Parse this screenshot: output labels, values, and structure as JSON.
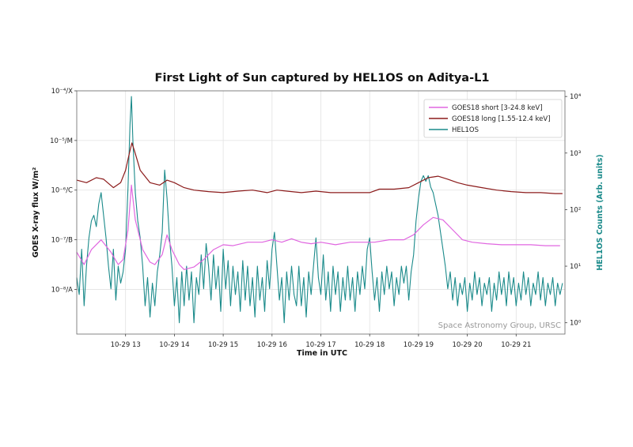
{
  "chart_data": {
    "type": "line",
    "title": "First Light of Sun captured by HEL1OS on Aditya-L1",
    "xlabel": "Time in UTC",
    "ylabel_left": "GOES X-ray flux W/m²",
    "ylabel_right": "HEL1OS Counts (Arb. units)",
    "watermark": "Space Astronomy Group, URSC",
    "x_tick_labels": [
      "10-29 13",
      "10-29 14",
      "10-29 15",
      "10-29 16",
      "10-29 17",
      "10-29 18",
      "10-29 19",
      "10-29 20",
      "10-29 21"
    ],
    "x_ticks_hours": [
      13,
      14,
      15,
      16,
      17,
      18,
      19,
      20,
      21
    ],
    "xlim_hours": [
      12.0,
      22.0
    ],
    "left_axis": {
      "scale": "log",
      "ylim_exp": [
        -8.9,
        -4.0
      ],
      "ticks": [
        {
          "exp": -4,
          "label": "10⁻⁴/X"
        },
        {
          "exp": -5,
          "label": "10⁻⁵/M"
        },
        {
          "exp": -6,
          "label": "10⁻⁶/C"
        },
        {
          "exp": -7,
          "label": "10⁻⁷/B"
        },
        {
          "exp": -8,
          "label": "10⁻⁸/A"
        }
      ]
    },
    "right_axis": {
      "scale": "log",
      "ylim_exp": [
        -0.2,
        4.1
      ],
      "ticks": [
        {
          "exp": 0,
          "label": "10⁰"
        },
        {
          "exp": 1,
          "label": "10¹"
        },
        {
          "exp": 2,
          "label": "10²"
        },
        {
          "exp": 3,
          "label": "10³"
        },
        {
          "exp": 4,
          "label": "10⁴"
        }
      ]
    },
    "grid": true,
    "legend_position": "top-right",
    "series": [
      {
        "name": "GOES18 short [3-24.8 keV]",
        "color": "#e066e0",
        "axis": "left",
        "points_exp": [
          [
            12.0,
            -7.25
          ],
          [
            12.15,
            -7.5
          ],
          [
            12.3,
            -7.2
          ],
          [
            12.5,
            -7.0
          ],
          [
            12.7,
            -7.25
          ],
          [
            12.85,
            -7.5
          ],
          [
            12.95,
            -7.4
          ],
          [
            13.05,
            -6.8
          ],
          [
            13.12,
            -5.9
          ],
          [
            13.2,
            -6.6
          ],
          [
            13.35,
            -7.2
          ],
          [
            13.5,
            -7.45
          ],
          [
            13.6,
            -7.5
          ],
          [
            13.75,
            -7.3
          ],
          [
            13.85,
            -6.9
          ],
          [
            13.95,
            -7.2
          ],
          [
            14.1,
            -7.5
          ],
          [
            14.2,
            -7.6
          ],
          [
            14.4,
            -7.55
          ],
          [
            14.6,
            -7.4
          ],
          [
            14.8,
            -7.2
          ],
          [
            15.0,
            -7.1
          ],
          [
            15.2,
            -7.12
          ],
          [
            15.5,
            -7.05
          ],
          [
            15.8,
            -7.05
          ],
          [
            16.0,
            -7.0
          ],
          [
            16.2,
            -7.05
          ],
          [
            16.4,
            -6.98
          ],
          [
            16.6,
            -7.05
          ],
          [
            16.8,
            -7.08
          ],
          [
            17.0,
            -7.05
          ],
          [
            17.3,
            -7.1
          ],
          [
            17.6,
            -7.05
          ],
          [
            17.9,
            -7.05
          ],
          [
            18.1,
            -7.05
          ],
          [
            18.4,
            -7.0
          ],
          [
            18.7,
            -7.0
          ],
          [
            18.9,
            -6.9
          ],
          [
            19.1,
            -6.7
          ],
          [
            19.3,
            -6.55
          ],
          [
            19.5,
            -6.6
          ],
          [
            19.7,
            -6.8
          ],
          [
            19.9,
            -7.0
          ],
          [
            20.1,
            -7.05
          ],
          [
            20.4,
            -7.08
          ],
          [
            20.7,
            -7.1
          ],
          [
            21.0,
            -7.1
          ],
          [
            21.3,
            -7.1
          ],
          [
            21.6,
            -7.12
          ],
          [
            21.9,
            -7.12
          ]
        ]
      },
      {
        "name": "GOES18 long [1.55-12.4 keV]",
        "color": "#8b1a1a",
        "axis": "left",
        "points_exp": [
          [
            12.0,
            -5.8
          ],
          [
            12.2,
            -5.85
          ],
          [
            12.4,
            -5.75
          ],
          [
            12.55,
            -5.78
          ],
          [
            12.75,
            -5.95
          ],
          [
            12.9,
            -5.85
          ],
          [
            13.0,
            -5.6
          ],
          [
            13.08,
            -5.25
          ],
          [
            13.13,
            -5.05
          ],
          [
            13.18,
            -5.2
          ],
          [
            13.3,
            -5.6
          ],
          [
            13.5,
            -5.85
          ],
          [
            13.7,
            -5.9
          ],
          [
            13.85,
            -5.8
          ],
          [
            14.0,
            -5.85
          ],
          [
            14.2,
            -5.95
          ],
          [
            14.4,
            -6.0
          ],
          [
            14.7,
            -6.03
          ],
          [
            15.0,
            -6.05
          ],
          [
            15.3,
            -6.02
          ],
          [
            15.6,
            -6.0
          ],
          [
            15.9,
            -6.05
          ],
          [
            16.1,
            -6.0
          ],
          [
            16.3,
            -6.02
          ],
          [
            16.6,
            -6.05
          ],
          [
            16.9,
            -6.02
          ],
          [
            17.2,
            -6.05
          ],
          [
            17.5,
            -6.05
          ],
          [
            17.8,
            -6.05
          ],
          [
            18.0,
            -6.05
          ],
          [
            18.2,
            -5.98
          ],
          [
            18.5,
            -5.98
          ],
          [
            18.8,
            -5.95
          ],
          [
            19.0,
            -5.85
          ],
          [
            19.2,
            -5.75
          ],
          [
            19.4,
            -5.72
          ],
          [
            19.6,
            -5.78
          ],
          [
            19.8,
            -5.85
          ],
          [
            20.0,
            -5.9
          ],
          [
            20.3,
            -5.95
          ],
          [
            20.6,
            -6.0
          ],
          [
            20.9,
            -6.03
          ],
          [
            21.2,
            -6.05
          ],
          [
            21.5,
            -6.05
          ],
          [
            21.8,
            -6.07
          ],
          [
            21.95,
            -6.07
          ]
        ]
      },
      {
        "name": "HEL1OS",
        "color": "#1a8a8a",
        "axis": "right",
        "points_exp": [
          [
            12.0,
            0.8
          ],
          [
            12.05,
            0.5
          ],
          [
            12.1,
            1.3
          ],
          [
            12.15,
            0.3
          ],
          [
            12.2,
            1.0
          ],
          [
            12.25,
            1.5
          ],
          [
            12.3,
            1.8
          ],
          [
            12.35,
            1.9
          ],
          [
            12.4,
            1.7
          ],
          [
            12.45,
            2.1
          ],
          [
            12.5,
            2.3
          ],
          [
            12.55,
            1.9
          ],
          [
            12.6,
            1.5
          ],
          [
            12.65,
            1.0
          ],
          [
            12.7,
            0.6
          ],
          [
            12.75,
            1.3
          ],
          [
            12.8,
            0.4
          ],
          [
            12.85,
            1.0
          ],
          [
            12.9,
            0.7
          ],
          [
            12.95,
            0.9
          ],
          [
            13.0,
            1.3
          ],
          [
            13.05,
            2.4
          ],
          [
            13.09,
            3.5
          ],
          [
            13.12,
            4.0
          ],
          [
            13.15,
            3.2
          ],
          [
            13.2,
            2.3
          ],
          [
            13.25,
            1.8
          ],
          [
            13.3,
            1.5
          ],
          [
            13.35,
            1.0
          ],
          [
            13.4,
            0.3
          ],
          [
            13.45,
            0.8
          ],
          [
            13.5,
            0.1
          ],
          [
            13.55,
            0.7
          ],
          [
            13.6,
            0.3
          ],
          [
            13.65,
            0.9
          ],
          [
            13.7,
            1.2
          ],
          [
            13.75,
            1.6
          ],
          [
            13.8,
            2.7
          ],
          [
            13.85,
            2.2
          ],
          [
            13.9,
            1.5
          ],
          [
            13.95,
            1.0
          ],
          [
            14.0,
            0.3
          ],
          [
            14.05,
            0.8
          ],
          [
            14.1,
            0.0
          ],
          [
            14.15,
            0.9
          ],
          [
            14.2,
            0.3
          ],
          [
            14.25,
            1.0
          ],
          [
            14.3,
            0.4
          ],
          [
            14.35,
            0.9
          ],
          [
            14.4,
            0.0
          ],
          [
            14.45,
            0.8
          ],
          [
            14.5,
            0.5
          ],
          [
            14.55,
            1.2
          ],
          [
            14.6,
            0.6
          ],
          [
            14.65,
            1.4
          ],
          [
            14.7,
            1.0
          ],
          [
            14.75,
            0.4
          ],
          [
            14.8,
            1.2
          ],
          [
            14.85,
            0.6
          ],
          [
            14.9,
            1.0
          ],
          [
            14.95,
            0.2
          ],
          [
            15.0,
            1.3
          ],
          [
            15.05,
            0.6
          ],
          [
            15.1,
            1.1
          ],
          [
            15.15,
            0.3
          ],
          [
            15.2,
            1.0
          ],
          [
            15.25,
            0.5
          ],
          [
            15.3,
            0.9
          ],
          [
            15.35,
            0.2
          ],
          [
            15.4,
            1.1
          ],
          [
            15.45,
            0.4
          ],
          [
            15.5,
            1.0
          ],
          [
            15.55,
            0.3
          ],
          [
            15.6,
            0.8
          ],
          [
            15.65,
            0.1
          ],
          [
            15.7,
            1.0
          ],
          [
            15.75,
            0.4
          ],
          [
            15.8,
            0.8
          ],
          [
            15.85,
            0.2
          ],
          [
            15.9,
            1.1
          ],
          [
            15.95,
            0.6
          ],
          [
            16.0,
            1.3
          ],
          [
            16.05,
            1.6
          ],
          [
            16.1,
            1.0
          ],
          [
            16.15,
            0.4
          ],
          [
            16.2,
            0.8
          ],
          [
            16.25,
            0.0
          ],
          [
            16.3,
            0.9
          ],
          [
            16.35,
            0.4
          ],
          [
            16.4,
            1.0
          ],
          [
            16.45,
            0.5
          ],
          [
            16.5,
            0.3
          ],
          [
            16.55,
            1.0
          ],
          [
            16.6,
            0.3
          ],
          [
            16.65,
            0.8
          ],
          [
            16.7,
            0.1
          ],
          [
            16.75,
            0.9
          ],
          [
            16.8,
            0.5
          ],
          [
            16.85,
            1.0
          ],
          [
            16.9,
            1.5
          ],
          [
            16.95,
            0.8
          ],
          [
            17.0,
            0.5
          ],
          [
            17.05,
            1.2
          ],
          [
            17.1,
            0.4
          ],
          [
            17.15,
            0.9
          ],
          [
            17.2,
            0.2
          ],
          [
            17.25,
            1.0
          ],
          [
            17.3,
            0.5
          ],
          [
            17.35,
            0.9
          ],
          [
            17.4,
            0.2
          ],
          [
            17.45,
            0.8
          ],
          [
            17.5,
            0.4
          ],
          [
            17.55,
            1.0
          ],
          [
            17.6,
            0.4
          ],
          [
            17.65,
            0.8
          ],
          [
            17.7,
            0.2
          ],
          [
            17.75,
            0.9
          ],
          [
            17.8,
            0.5
          ],
          [
            17.85,
            1.0
          ],
          [
            17.9,
            0.6
          ],
          [
            17.95,
            1.3
          ],
          [
            18.0,
            1.5
          ],
          [
            18.05,
            0.9
          ],
          [
            18.1,
            0.4
          ],
          [
            18.15,
            0.8
          ],
          [
            18.2,
            0.2
          ],
          [
            18.25,
            0.9
          ],
          [
            18.3,
            0.5
          ],
          [
            18.35,
            1.0
          ],
          [
            18.4,
            0.6
          ],
          [
            18.45,
            0.9
          ],
          [
            18.5,
            0.3
          ],
          [
            18.55,
            0.8
          ],
          [
            18.6,
            0.5
          ],
          [
            18.65,
            1.0
          ],
          [
            18.7,
            0.7
          ],
          [
            18.75,
            1.0
          ],
          [
            18.8,
            0.4
          ],
          [
            18.85,
            0.9
          ],
          [
            18.9,
            1.2
          ],
          [
            18.95,
            1.8
          ],
          [
            19.0,
            2.2
          ],
          [
            19.05,
            2.5
          ],
          [
            19.1,
            2.6
          ],
          [
            19.15,
            2.5
          ],
          [
            19.2,
            2.6
          ],
          [
            19.25,
            2.4
          ],
          [
            19.3,
            2.3
          ],
          [
            19.35,
            2.1
          ],
          [
            19.4,
            1.9
          ],
          [
            19.45,
            1.6
          ],
          [
            19.5,
            1.3
          ],
          [
            19.55,
            1.0
          ],
          [
            19.6,
            0.6
          ],
          [
            19.65,
            0.9
          ],
          [
            19.7,
            0.4
          ],
          [
            19.75,
            0.8
          ],
          [
            19.8,
            0.3
          ],
          [
            19.85,
            0.7
          ],
          [
            19.9,
            0.5
          ],
          [
            19.95,
            0.8
          ],
          [
            20.0,
            0.2
          ],
          [
            20.05,
            0.7
          ],
          [
            20.1,
            0.4
          ],
          [
            20.15,
            0.9
          ],
          [
            20.2,
            0.5
          ],
          [
            20.25,
            0.8
          ],
          [
            20.3,
            0.3
          ],
          [
            20.35,
            0.7
          ],
          [
            20.4,
            0.5
          ],
          [
            20.45,
            0.8
          ],
          [
            20.5,
            0.2
          ],
          [
            20.55,
            0.7
          ],
          [
            20.6,
            0.4
          ],
          [
            20.65,
            0.9
          ],
          [
            20.7,
            0.5
          ],
          [
            20.75,
            0.8
          ],
          [
            20.8,
            0.3
          ],
          [
            20.85,
            0.9
          ],
          [
            20.9,
            0.5
          ],
          [
            20.95,
            0.8
          ],
          [
            21.0,
            0.3
          ],
          [
            21.05,
            0.7
          ],
          [
            21.1,
            0.4
          ],
          [
            21.15,
            0.9
          ],
          [
            21.2,
            0.5
          ],
          [
            21.25,
            0.8
          ],
          [
            21.3,
            0.3
          ],
          [
            21.35,
            0.7
          ],
          [
            21.4,
            0.5
          ],
          [
            21.45,
            0.9
          ],
          [
            21.5,
            0.4
          ],
          [
            21.55,
            0.8
          ],
          [
            21.6,
            0.3
          ],
          [
            21.65,
            0.7
          ],
          [
            21.7,
            0.5
          ],
          [
            21.75,
            0.8
          ],
          [
            21.8,
            0.3
          ],
          [
            21.85,
            0.7
          ],
          [
            21.9,
            0.5
          ],
          [
            21.95,
            0.7
          ]
        ]
      }
    ]
  }
}
